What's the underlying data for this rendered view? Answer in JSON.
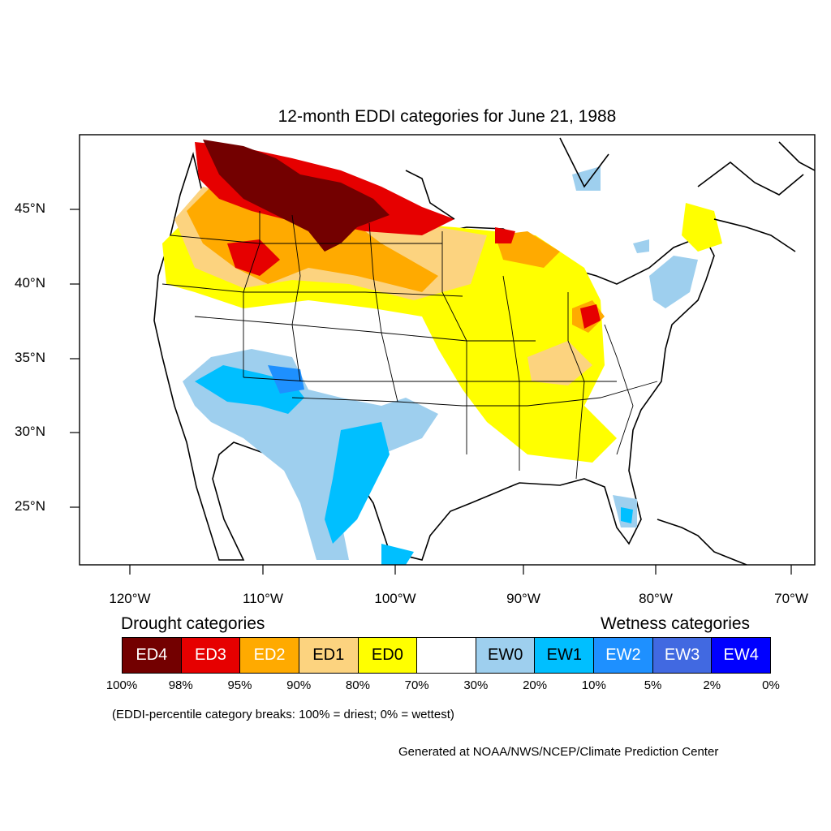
{
  "map": {
    "title": "12-month EDDI categories for June 21, 1988",
    "lat_labels": [
      "45°N",
      "40°N",
      "35°N",
      "30°N",
      "25°N"
    ],
    "lon_labels": [
      "120°W",
      "110°W",
      "100°W",
      "90°W",
      "80°W",
      "70°W"
    ]
  },
  "legend": {
    "drought_heading": "Drought categories",
    "wetness_heading": "Wetness categories",
    "categories": [
      {
        "label": "ED4",
        "color": "#730000",
        "text_color": "#ffffff"
      },
      {
        "label": "ED3",
        "color": "#e60000",
        "text_color": "#ffffff"
      },
      {
        "label": "ED2",
        "color": "#ffaa00",
        "text_color": "#ffffff"
      },
      {
        "label": "ED1",
        "color": "#fcd37f",
        "text_color": "#000000"
      },
      {
        "label": "ED0",
        "color": "#ffff00",
        "text_color": "#000000"
      },
      {
        "label": "",
        "color": "#ffffff",
        "text_color": "#000000"
      },
      {
        "label": "EW0",
        "color": "#9ecfee",
        "text_color": "#000000"
      },
      {
        "label": "EW1",
        "color": "#00bfff",
        "text_color": "#000000"
      },
      {
        "label": "EW2",
        "color": "#1e90ff",
        "text_color": "#ffffff"
      },
      {
        "label": "EW3",
        "color": "#4169e1",
        "text_color": "#ffffff"
      },
      {
        "label": "EW4",
        "color": "#0000ff",
        "text_color": "#ffffff"
      }
    ],
    "breaks": [
      "100%",
      "98%",
      "95%",
      "90%",
      "80%",
      "70%",
      "30%",
      "20%",
      "10%",
      "5%",
      "2%",
      "0%"
    ],
    "note": "(EDDI-percentile category breaks: 100% = driest; 0% = wettest)"
  },
  "credit": "Generated at NOAA/NWS/NCEP/Climate Prediction Center"
}
